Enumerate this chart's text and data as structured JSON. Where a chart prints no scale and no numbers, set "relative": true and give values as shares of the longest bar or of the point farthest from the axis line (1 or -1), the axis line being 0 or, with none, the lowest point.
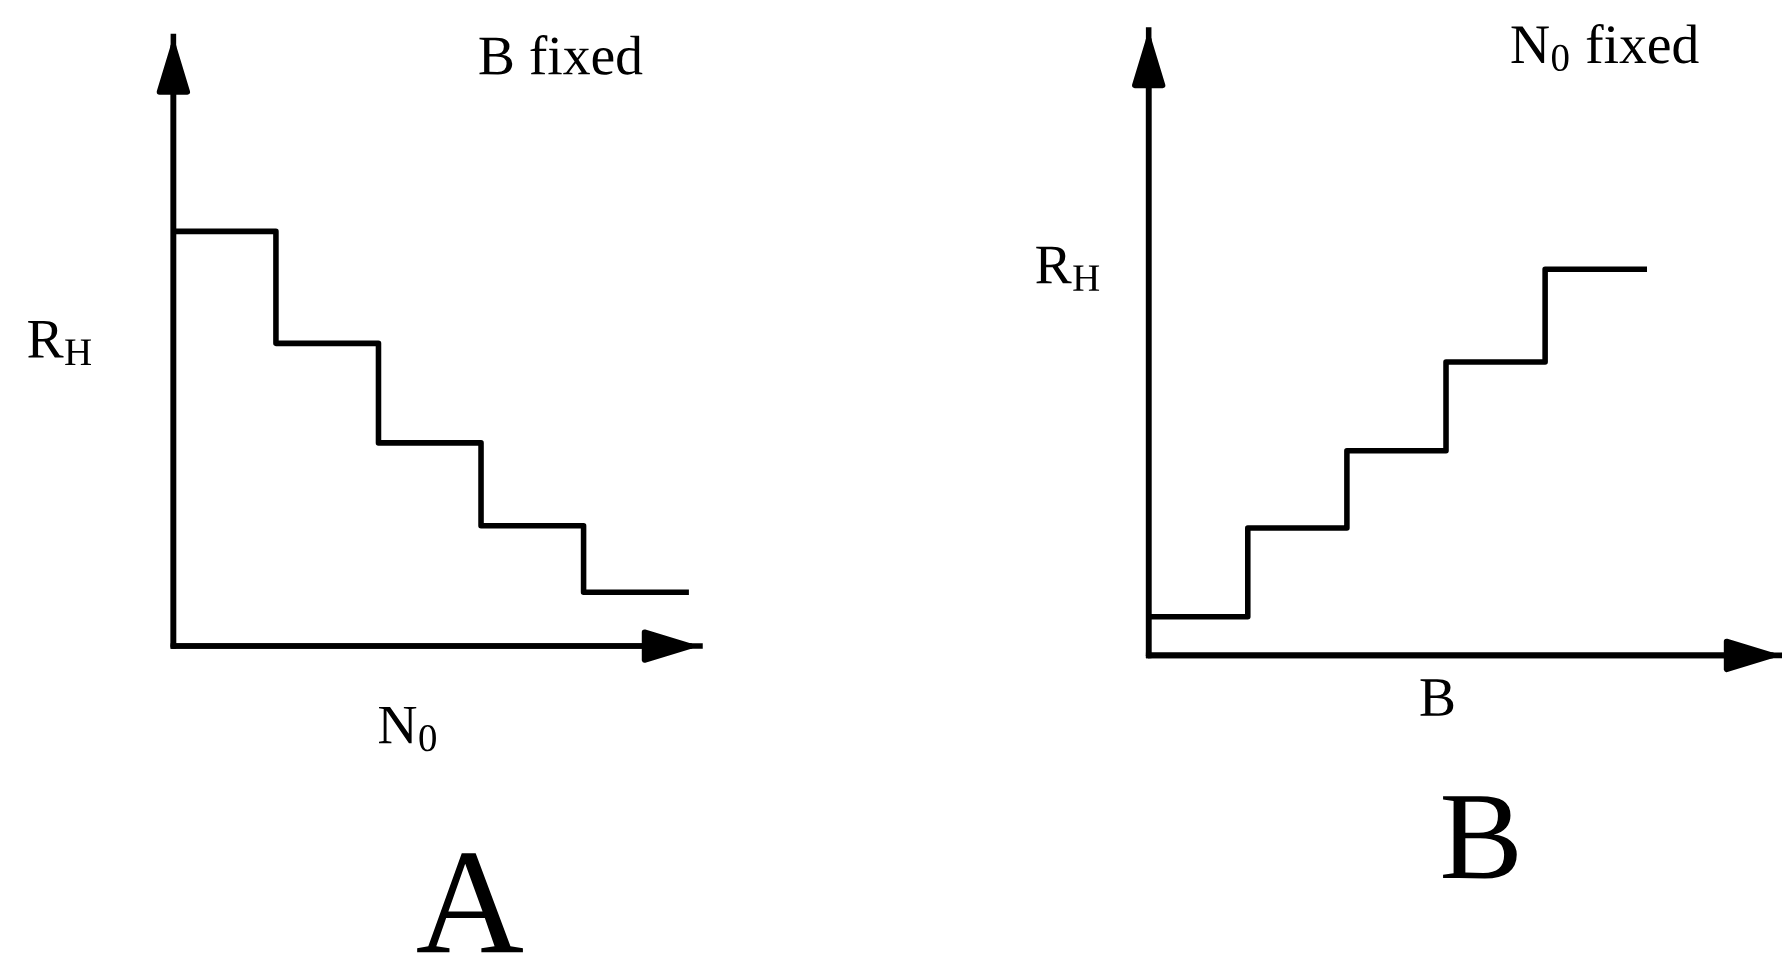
{
  "chart_data": [
    {
      "type": "step",
      "title": "A",
      "xlabel": "N$_{0}$",
      "ylabel": "R$_{H}$",
      "annotations": [
        "B fixed"
      ],
      "categories": [
        null,
        null,
        null,
        null,
        null,
        null
      ],
      "relative": true,
      "series": [
        {
          "color": "#000000",
          "values": [
            1,
            0.73,
            0.49,
            0.29,
            0.13,
            0.13
          ]
        }
      ]
    },
    {
      "type": "step",
      "title": "B",
      "xlabel": "B",
      "ylabel": "R$_{H}$",
      "annotations": [
        "N$_{0}$ fixed"
      ],
      "categories": [
        null,
        null,
        null,
        null,
        null,
        null
      ],
      "relative": true,
      "series": [
        {
          "color": "#000000",
          "values": [
            0.1,
            0.33,
            0.53,
            0.76,
            1,
            1
          ]
        }
      ]
    }
  ]
}
